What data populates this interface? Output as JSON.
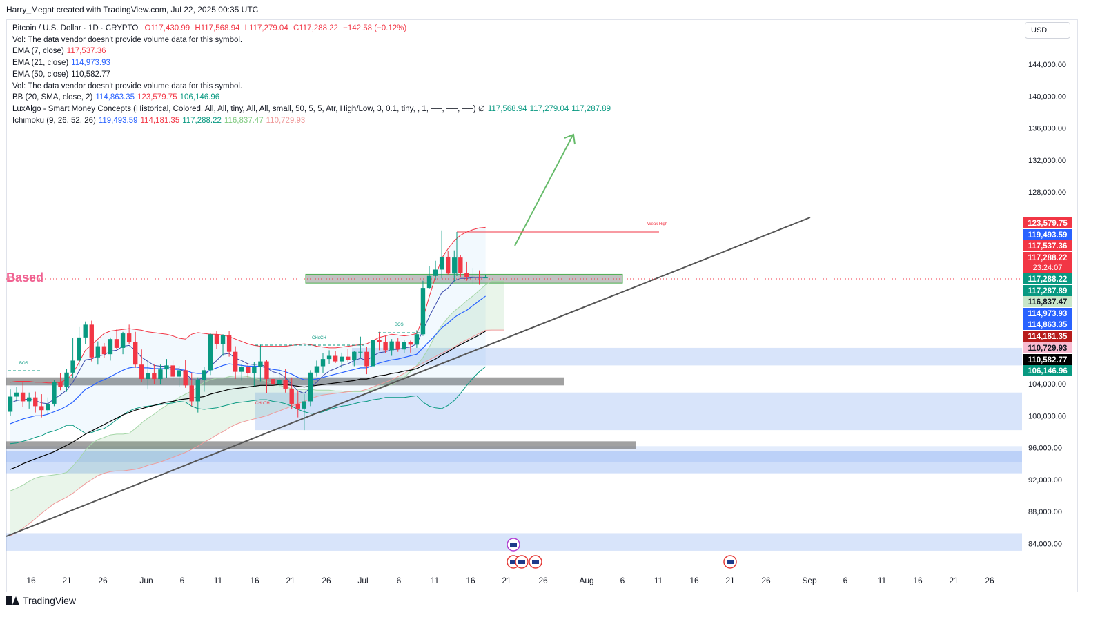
{
  "header": {
    "attribution": "Harry_Megat created with TradingView.com, Jul 22, 2025 00:35 UTC"
  },
  "currency": "USD",
  "watermark": "Based",
  "brand": "TradingView",
  "legend": {
    "symbol": "Bitcoin / U.S. Dollar · 1D · CRYPTO",
    "ohlc": {
      "o": "O117,430.99",
      "h": "H117,568.94",
      "l": "L117,279.04",
      "c": "C117,288.22",
      "chg": "−142.58 (−0.12%)"
    },
    "vol1": "Vol: The data vendor doesn't provide volume data for this symbol.",
    "ema7_label": "EMA (7, close)",
    "ema7_val": "117,537.36",
    "ema21_label": "EMA (21, close)",
    "ema21_val": "114,973.93",
    "ema50_label": "EMA (50, close)",
    "ema50_val": "110,582.77",
    "vol2": "Vol: The data vendor doesn't provide volume data for this symbol.",
    "bb_label": "BB (20, SMA, close, 2)",
    "bb_v1": "114,863.35",
    "bb_v2": "123,579.75",
    "bb_v3": "106,146.96",
    "lux_label": "LuxAlgo - Smart Money Concepts (Historical, Colored, All, All, tiny, All, All, small, 50, 5, 5, Atr, High/Low, 3, 0.1, tiny, , 1, ──, ──, ──) ∅",
    "lux_v1": "117,568.94",
    "lux_v2": "117,279.04",
    "lux_v3": "117,287.89",
    "ichi_label": "Ichimoku (9, 26, 52, 26)",
    "ichi_v1": "119,493.59",
    "ichi_v2": "114,181.35",
    "ichi_v3": "117,288.22",
    "ichi_v4": "116,837.47",
    "ichi_v5": "110,729.93"
  },
  "annotations": {
    "weak_high": "Weak High",
    "bos": "BOS",
    "choch": "CHoCH"
  },
  "chart_data": {
    "type": "candlestick",
    "y_ticks": [
      144000,
      140000,
      136000,
      132000,
      128000,
      104000,
      100000,
      96000,
      92000,
      88000,
      84000
    ],
    "ylim": [
      81000,
      147500
    ],
    "x_ticks": [
      "16",
      "21",
      "26",
      "Jun",
      "6",
      "11",
      "16",
      "21",
      "26",
      "Jul",
      "6",
      "11",
      "16",
      "21",
      "26",
      "Aug",
      "6",
      "11",
      "16",
      "21",
      "26",
      "Sep",
      "6",
      "11",
      "16",
      "21",
      "26"
    ],
    "price_labels": [
      {
        "text": "123,579.75",
        "bg": "#f23645",
        "fg": "#ffffff"
      },
      {
        "text": "119,493.59",
        "bg": "#2962ff",
        "fg": "#ffffff"
      },
      {
        "text": "117,537.36",
        "bg": "#f23645",
        "fg": "#ffffff"
      },
      {
        "text": "117,288.22",
        "text2": "23:24:07",
        "bg": "#f23645",
        "fg": "#ffffff"
      },
      {
        "text": "117,288.22",
        "bg": "#089981",
        "fg": "#ffffff"
      },
      {
        "text": "117,287.89",
        "bg": "#089981",
        "fg": "#ffffff"
      },
      {
        "text": "116,837.47",
        "bg": "#c8e6c9",
        "fg": "#131722"
      },
      {
        "text": "114,973.93",
        "bg": "#2962ff",
        "fg": "#ffffff"
      },
      {
        "text": "114,863.35",
        "bg": "#2962ff",
        "fg": "#ffffff"
      },
      {
        "text": "114,181.35",
        "bg": "#b71c1c",
        "fg": "#ffffff"
      },
      {
        "text": "110,729.93",
        "bg": "#f8bbd0",
        "fg": "#131722"
      },
      {
        "text": "110,582.77",
        "bg": "#000000",
        "fg": "#ffffff"
      },
      {
        "text": "106,146.96",
        "bg": "#089981",
        "fg": "#ffffff"
      }
    ],
    "candles": [
      [
        100500,
        103300,
        100000,
        102400
      ],
      [
        102400,
        103600,
        101800,
        102900
      ],
      [
        102900,
        104200,
        101100,
        101800
      ],
      [
        101800,
        102900,
        100900,
        102300
      ],
      [
        102300,
        103000,
        100400,
        101200
      ],
      [
        101200,
        102700,
        99800,
        100700
      ],
      [
        100700,
        102300,
        100100,
        101500
      ],
      [
        101500,
        104500,
        101200,
        104200
      ],
      [
        104200,
        105300,
        103200,
        103600
      ],
      [
        103600,
        105900,
        103000,
        105400
      ],
      [
        105400,
        109700,
        104700,
        106900
      ],
      [
        106900,
        111100,
        106200,
        109800
      ],
      [
        109800,
        111800,
        109000,
        111400
      ],
      [
        111400,
        111900,
        106800,
        107300
      ],
      [
        107300,
        109300,
        106400,
        108700
      ],
      [
        108700,
        109100,
        107200,
        107700
      ],
      [
        107700,
        109800,
        106900,
        109600
      ],
      [
        109600,
        110800,
        108300,
        108500
      ],
      [
        108500,
        110500,
        107700,
        110300
      ],
      [
        110300,
        111400,
        109000,
        109200
      ],
      [
        109200,
        110500,
        106000,
        106400
      ],
      [
        106400,
        108300,
        104200,
        104600
      ],
      [
        104600,
        106800,
        103300,
        105300
      ],
      [
        105300,
        106400,
        104000,
        104600
      ],
      [
        104600,
        106400,
        103900,
        105800
      ],
      [
        105800,
        107100,
        104700,
        106300
      ],
      [
        106300,
        106900,
        104400,
        104900
      ],
      [
        104900,
        106200,
        103600,
        105700
      ],
      [
        105700,
        107000,
        103500,
        103800
      ],
      [
        103800,
        105400,
        101200,
        101800
      ],
      [
        101800,
        104800,
        100400,
        104500
      ],
      [
        104500,
        106100,
        103000,
        105700
      ],
      [
        105700,
        110300,
        105100,
        110200
      ],
      [
        110200,
        110600,
        108400,
        109000
      ],
      [
        109000,
        110200,
        107500,
        110100
      ],
      [
        110100,
        110600,
        107400,
        108000
      ],
      [
        108000,
        108700,
        104600,
        105500
      ],
      [
        105500,
        106500,
        104400,
        106100
      ],
      [
        106100,
        106600,
        104700,
        105300
      ],
      [
        105300,
        106700,
        103700,
        106100
      ],
      [
        106100,
        108900,
        104300,
        106800
      ],
      [
        106800,
        107000,
        102800,
        104600
      ],
      [
        104600,
        105500,
        103200,
        103900
      ],
      [
        103900,
        106100,
        103500,
        104500
      ],
      [
        104500,
        105900,
        102900,
        103400
      ],
      [
        103400,
        104800,
        100800,
        101500
      ],
      [
        101500,
        103100,
        99800,
        100900
      ],
      [
        100900,
        102700,
        98200,
        101800
      ],
      [
        101800,
        105700,
        101200,
        105400
      ],
      [
        105400,
        106900,
        104900,
        106200
      ],
      [
        106200,
        107800,
        105300,
        107100
      ],
      [
        107100,
        108200,
        106500,
        107500
      ],
      [
        107500,
        108100,
        106600,
        106800
      ],
      [
        106800,
        107900,
        106000,
        107400
      ],
      [
        107400,
        108400,
        106700,
        107000
      ],
      [
        107000,
        108100,
        106200,
        108000
      ],
      [
        108000,
        109900,
        107200,
        108000
      ],
      [
        108000,
        108600,
        105200,
        106200
      ],
      [
        106200,
        109800,
        105900,
        109500
      ],
      [
        109500,
        110500,
        108200,
        109200
      ],
      [
        109200,
        110000,
        107800,
        108200
      ],
      [
        108200,
        109600,
        107500,
        109300
      ],
      [
        109300,
        109700,
        108000,
        108300
      ],
      [
        108300,
        109500,
        107800,
        109200
      ],
      [
        109200,
        109400,
        107900,
        108900
      ],
      [
        108900,
        110700,
        108500,
        110200
      ],
      [
        110200,
        116900,
        110000,
        116000
      ],
      [
        116000,
        118700,
        115900,
        117500
      ],
      [
        117500,
        119400,
        117000,
        118300
      ],
      [
        118300,
        123200,
        117200,
        119900
      ],
      [
        119900,
        120600,
        117600,
        117800
      ],
      [
        117800,
        120700,
        116800,
        119800
      ],
      [
        119800,
        120100,
        117300,
        117900
      ],
      [
        117900,
        119300,
        116900,
        117300
      ],
      [
        117300,
        118500,
        116500,
        117400
      ],
      [
        117400,
        118200,
        116400,
        117300
      ],
      [
        117300,
        117600,
        117300,
        117300
      ]
    ],
    "ema7": [
      101600,
      101900,
      102000,
      102100,
      101900,
      101600,
      101500,
      102100,
      102600,
      103200,
      104200,
      105600,
      107000,
      107100,
      107500,
      107600,
      108100,
      108200,
      108700,
      108800,
      108200,
      107300,
      106800,
      106300,
      106200,
      106200,
      105900,
      105900,
      105400,
      104500,
      104500,
      104800,
      106200,
      106900,
      107700,
      107800,
      107200,
      106900,
      106500,
      106400,
      106500,
      106000,
      105500,
      105300,
      104800,
      103900,
      103100,
      102800,
      103500,
      104200,
      105000,
      105600,
      105900,
      106300,
      106500,
      106900,
      107200,
      106900,
      107500,
      107900,
      108000,
      108300,
      108300,
      108500,
      108600,
      109000,
      110700,
      112400,
      113900,
      115400,
      116000,
      116900,
      117200,
      117200,
      117300,
      117300,
      117300
    ],
    "ema21": [
      99000,
      99300,
      99600,
      99800,
      100000,
      100000,
      100200,
      100500,
      100800,
      101200,
      101700,
      102500,
      103300,
      103700,
      104200,
      104500,
      104900,
      105300,
      105700,
      106000,
      106100,
      106000,
      106000,
      105900,
      105900,
      105900,
      105800,
      105800,
      105700,
      105400,
      105300,
      105300,
      105700,
      106000,
      106300,
      106500,
      106400,
      106300,
      106200,
      106200,
      106200,
      106000,
      105800,
      105700,
      105500,
      105200,
      104800,
      104500,
      104500,
      104600,
      104800,
      105000,
      105200,
      105400,
      105600,
      105800,
      106000,
      106000,
      106300,
      106600,
      106800,
      107000,
      107100,
      107300,
      107500,
      107700,
      108500,
      109300,
      110100,
      111000,
      111600,
      112300,
      112800,
      113200,
      113800,
      114400,
      114973
    ],
    "ema50": [
      93300,
      93600,
      94000,
      94300,
      94600,
      94900,
      95200,
      95500,
      95900,
      96300,
      96700,
      97200,
      97700,
      98100,
      98500,
      98900,
      99300,
      99700,
      100100,
      100400,
      100700,
      100900,
      101100,
      101300,
      101500,
      101700,
      101800,
      102000,
      102100,
      102200,
      102300,
      102400,
      102700,
      102900,
      103100,
      103300,
      103400,
      103500,
      103600,
      103700,
      103800,
      103800,
      103800,
      103900,
      103900,
      103800,
      103700,
      103600,
      103700,
      103800,
      103900,
      104000,
      104100,
      104200,
      104300,
      104400,
      104600,
      104600,
      104800,
      105000,
      105100,
      105300,
      105400,
      105600,
      105700,
      105900,
      106300,
      106700,
      107100,
      107600,
      108000,
      108500,
      108900,
      109300,
      109700,
      110100,
      110582
    ],
    "bb_upper": [
      104200,
      104300,
      104300,
      104300,
      104200,
      104200,
      104100,
      104100,
      104200,
      104500,
      105300,
      106700,
      108200,
      108900,
      109600,
      110300,
      110600,
      110700,
      110800,
      110900,
      110800,
      110700,
      110500,
      110400,
      110300,
      110200,
      110000,
      109700,
      109600,
      110200,
      110400,
      110300,
      110200,
      110200,
      110100,
      109900,
      109600,
      109300,
      109000,
      108800,
      108700,
      108700,
      108700,
      108700,
      108700,
      108800,
      108900,
      109000,
      108900,
      108700,
      108600,
      108500,
      108500,
      108600,
      108700,
      108800,
      108900,
      109000,
      109400,
      109800,
      110000,
      110200,
      110100,
      110000,
      110100,
      110300,
      112200,
      114900,
      117400,
      119700,
      120900,
      121900,
      122600,
      123000,
      123300,
      123500,
      123579
    ],
    "bb_lower": [
      96500,
      96600,
      96800,
      97000,
      97300,
      97500,
      97900,
      98100,
      98400,
      98800,
      98800,
      98300,
      97800,
      97900,
      98200,
      98400,
      98900,
      99500,
      100100,
      100600,
      100900,
      101100,
      101200,
      101300,
      101400,
      101500,
      101600,
      101800,
      101700,
      101200,
      100900,
      100800,
      100900,
      101000,
      101200,
      101400,
      101600,
      101700,
      101800,
      101900,
      102000,
      102000,
      101800,
      101700,
      101500,
      101200,
      100800,
      100500,
      100300,
      100300,
      100500,
      100800,
      101000,
      101200,
      101300,
      101500,
      101700,
      101800,
      102000,
      102100,
      102300,
      102300,
      102300,
      102300,
      102400,
      102500,
      101700,
      101200,
      101000,
      100900,
      101300,
      101900,
      102800,
      103800,
      104700,
      105500,
      106146
    ],
    "ichi_cloud": [
      [
        90600,
        85000
      ],
      [
        90900,
        85400
      ],
      [
        91300,
        85900
      ],
      [
        91800,
        86500
      ],
      [
        92200,
        87100
      ],
      [
        92400,
        87800
      ],
      [
        92500,
        88400
      ],
      [
        92600,
        89000
      ],
      [
        92700,
        89400
      ],
      [
        92900,
        89800
      ],
      [
        93700,
        90300
      ],
      [
        94600,
        90900
      ],
      [
        95700,
        91500
      ],
      [
        96500,
        92000
      ],
      [
        97000,
        92500
      ],
      [
        97300,
        92800
      ],
      [
        97600,
        93000
      ],
      [
        97700,
        93100
      ],
      [
        97700,
        93100
      ],
      [
        97800,
        93200
      ],
      [
        98400,
        93300
      ],
      [
        99100,
        93500
      ],
      [
        99700,
        93800
      ],
      [
        100200,
        94000
      ],
      [
        100800,
        94200
      ],
      [
        101300,
        94500
      ],
      [
        101800,
        94800
      ],
      [
        102300,
        95100
      ],
      [
        102700,
        95400
      ],
      [
        103100,
        95800
      ],
      [
        103600,
        96200
      ],
      [
        104200,
        96700
      ],
      [
        104500,
        97100
      ],
      [
        104700,
        97600
      ],
      [
        104700,
        98000
      ],
      [
        104900,
        98500
      ],
      [
        105000,
        98900
      ],
      [
        105000,
        99200
      ],
      [
        104900,
        99400
      ],
      [
        104700,
        99600
      ],
      [
        104500,
        99800
      ],
      [
        104300,
        100000
      ],
      [
        104000,
        100300
      ],
      [
        103800,
        100600
      ],
      [
        103600,
        100900
      ],
      [
        103400,
        101200
      ],
      [
        103300,
        101500
      ],
      [
        103300,
        101800
      ],
      [
        103300,
        102100
      ],
      [
        103200,
        102400
      ],
      [
        103200,
        102600
      ],
      [
        103200,
        102700
      ],
      [
        103100,
        102800
      ],
      [
        103100,
        102900
      ],
      [
        103000,
        103000
      ],
      [
        103000,
        103100
      ],
      [
        103000,
        103100
      ],
      [
        103100,
        103300
      ],
      [
        103200,
        103600
      ],
      [
        103400,
        103900
      ],
      [
        103700,
        104200
      ],
      [
        103900,
        104500
      ],
      [
        104300,
        104900
      ],
      [
        104800,
        105300
      ],
      [
        105500,
        105800
      ],
      [
        106300,
        106200
      ],
      [
        107300,
        106600
      ],
      [
        108600,
        107000
      ],
      [
        110100,
        107400
      ],
      [
        111300,
        107800
      ],
      [
        112300,
        108200
      ],
      [
        113100,
        108600
      ],
      [
        113700,
        109100
      ],
      [
        114400,
        109500
      ],
      [
        115000,
        109900
      ],
      [
        115700,
        110300
      ],
      [
        116400,
        110700
      ],
      [
        116837,
        110729
      ],
      [
        116837,
        110729
      ],
      [
        116837,
        110729
      ]
    ],
    "series_colors": {
      "ema7": "#f23645",
      "ema21": "#2962ff",
      "ema50": "#000000",
      "bb": "#f23645",
      "up": "#089981",
      "down": "#f23645"
    }
  }
}
